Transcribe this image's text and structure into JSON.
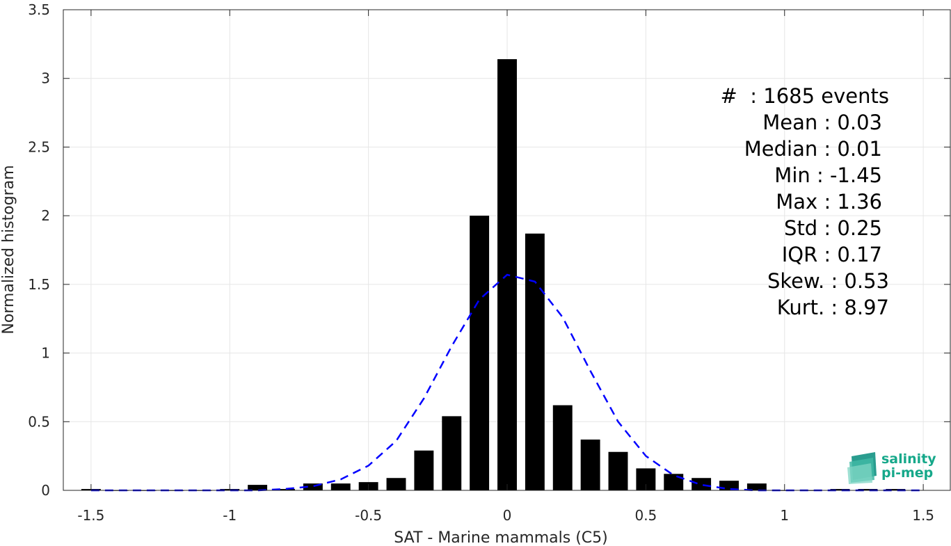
{
  "chart_data": {
    "type": "bar",
    "xlabel": "SAT - Marine mammals (C5)",
    "ylabel": "Normalized histogram",
    "xlim": [
      -1.6,
      1.6
    ],
    "ylim": [
      0,
      3.5
    ],
    "xticks": [
      -1.5,
      -1,
      -0.5,
      0,
      0.5,
      1,
      1.5
    ],
    "xtick_labels": [
      "-1.5",
      "-1",
      "-0.5",
      "0",
      "0.5",
      "1",
      "1.5"
    ],
    "yticks": [
      0,
      0.5,
      1,
      1.5,
      2,
      2.5,
      3,
      3.5
    ],
    "ytick_labels": [
      "0",
      "0.5",
      "1",
      "1.5",
      "2",
      "2.5",
      "3",
      "3.5"
    ],
    "grid": true,
    "bar_color": "#000000",
    "curve_color": "#0000ff",
    "bars": {
      "x": [
        -1.5,
        -1.4,
        -1.3,
        -1.2,
        -1.1,
        -1.0,
        -0.9,
        -0.8,
        -0.7,
        -0.6,
        -0.5,
        -0.4,
        -0.3,
        -0.2,
        -0.1,
        0.0,
        0.1,
        0.2,
        0.3,
        0.4,
        0.5,
        0.6,
        0.7,
        0.8,
        0.9,
        1.0,
        1.1,
        1.2,
        1.3,
        1.4
      ],
      "values": [
        0.01,
        0.0,
        0.0,
        0.0,
        0.0,
        0.01,
        0.04,
        0.01,
        0.05,
        0.05,
        0.06,
        0.09,
        0.29,
        0.54,
        2.0,
        3.14,
        1.87,
        0.62,
        0.37,
        0.28,
        0.16,
        0.12,
        0.09,
        0.07,
        0.05,
        0.0,
        0.0,
        0.01,
        0.01,
        0.01
      ]
    },
    "series": [
      {
        "style": "dashed",
        "x": [
          -1.5,
          -1.4,
          -1.3,
          -1.2,
          -1.1,
          -1.0,
          -0.9,
          -0.8,
          -0.7,
          -0.6,
          -0.5,
          -0.4,
          -0.3,
          -0.2,
          -0.1,
          0.0,
          0.1,
          0.2,
          0.3,
          0.4,
          0.5,
          0.6,
          0.7,
          0.8,
          0.9,
          1.0,
          1.1,
          1.2,
          1.3,
          1.4,
          1.5
        ],
        "values": [
          0.0,
          0.0,
          0.0,
          0.0,
          0.0,
          0.0,
          0.0,
          0.01,
          0.03,
          0.08,
          0.18,
          0.36,
          0.67,
          1.05,
          1.39,
          1.57,
          1.52,
          1.26,
          0.87,
          0.5,
          0.25,
          0.11,
          0.04,
          0.01,
          0.0,
          0.0,
          0.0,
          0.0,
          0.0,
          0.0,
          0.0
        ]
      }
    ],
    "annotations": [
      "#  : 1685 events",
      "Mean : 0.03",
      "Median : 0.01",
      "Min : -1.45",
      "Max : 1.36",
      "Std : 0.25",
      "IQR : 0.17",
      "Skew. : 0.53",
      "Kurt. : 8.97"
    ]
  },
  "logo": {
    "line1": "salinity",
    "line2": "pi-mep"
  }
}
